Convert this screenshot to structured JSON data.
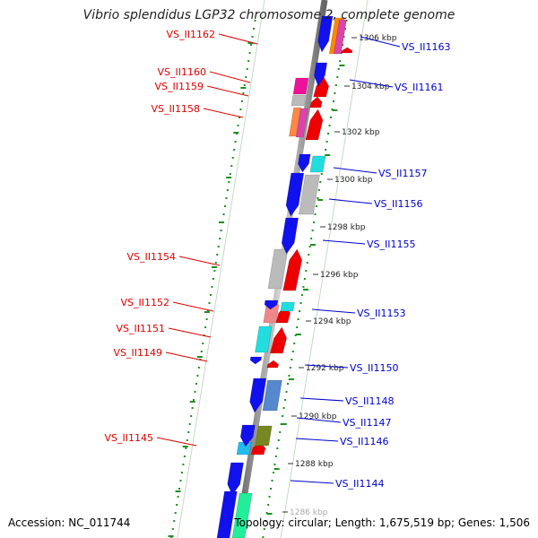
{
  "title": "Vibrio splendidus LGP32 chromosome 2, complete genome",
  "footer": {
    "accession": "Accession: NC_011744",
    "topology": "Topology: circular; Length: 1,675,519 bp; Genes: 1,506"
  },
  "colors": {
    "forward_label": "#dd0000",
    "reverse_label": "#0000cc",
    "backbone": "#9a9a9a",
    "dots": "#1f8f1f"
  },
  "scale_labels": [
    {
      "text": "1306 kbp"
    },
    {
      "text": "1304 kbp"
    },
    {
      "text": "1302 kbp"
    },
    {
      "text": "1300 kbp"
    },
    {
      "text": "1298 kbp"
    },
    {
      "text": "1296 kbp"
    },
    {
      "text": "1294 kbp"
    },
    {
      "text": "1292 kbp"
    },
    {
      "text": "1290 kbp"
    },
    {
      "text": "1288 kbp"
    },
    {
      "text": "1286 kbp"
    }
  ],
  "forward_genes": [
    {
      "label": "VS_II1162"
    },
    {
      "label": "VS_II1160"
    },
    {
      "label": "VS_II1159"
    },
    {
      "label": "VS_II1158"
    },
    {
      "label": "VS_II1154"
    },
    {
      "label": "VS_II1152"
    },
    {
      "label": "VS_II1151"
    },
    {
      "label": "VS_II1149"
    },
    {
      "label": "VS_II1145"
    }
  ],
  "reverse_genes": [
    {
      "label": "VS_II1163"
    },
    {
      "label": "VS_II1161"
    },
    {
      "label": "VS_II1157"
    },
    {
      "label": "VS_II1156"
    },
    {
      "label": "VS_II1155"
    },
    {
      "label": "VS_II1153"
    },
    {
      "label": "VS_II1150"
    },
    {
      "label": "VS_II1148"
    },
    {
      "label": "VS_II1147"
    },
    {
      "label": "VS_II1146"
    },
    {
      "label": "VS_II1144"
    }
  ]
}
